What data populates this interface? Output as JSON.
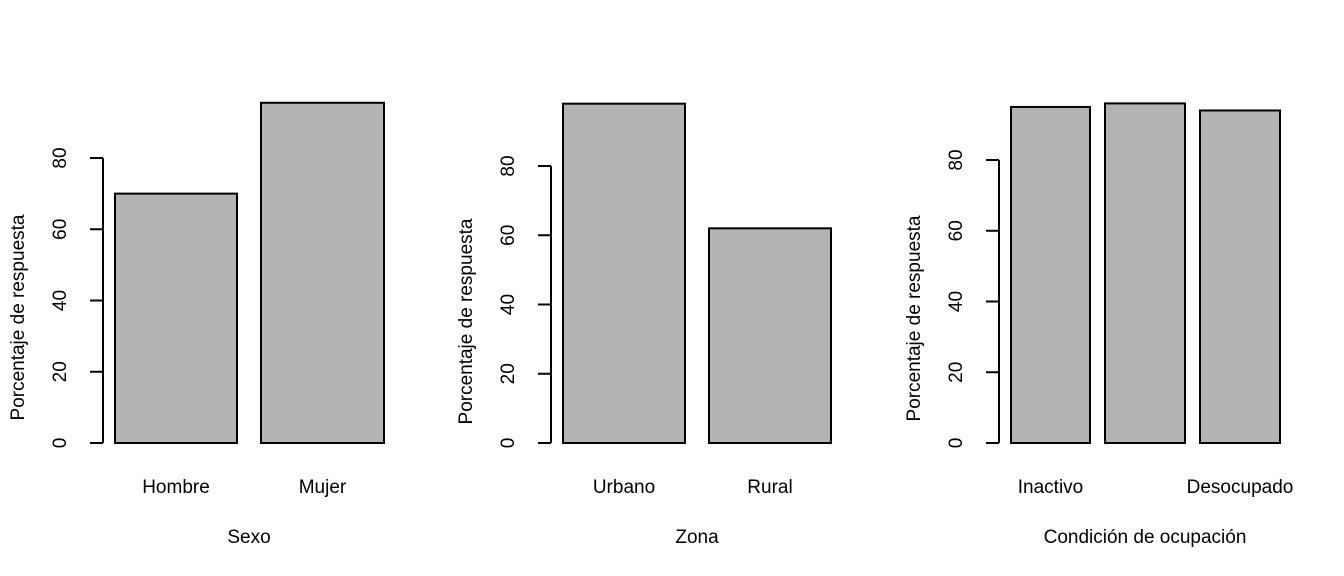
{
  "chart_data": [
    {
      "type": "bar",
      "categories": [
        "Hombre",
        "Mujer"
      ],
      "category_labels_shown": [
        "Hombre",
        "Mujer"
      ],
      "values": [
        70,
        95.5
      ],
      "xlabel": "Sexo",
      "ylabel": "Porcentaje de respuesta",
      "yticks": [
        0,
        20,
        40,
        60,
        80
      ],
      "ylim": [
        0,
        95.5
      ],
      "bar_color": "#b3b3b3",
      "grid": false
    },
    {
      "type": "bar",
      "categories": [
        "Urbano",
        "Rural"
      ],
      "category_labels_shown": [
        "Urbano",
        "Rural"
      ],
      "values": [
        98,
        62
      ],
      "xlabel": "Zona",
      "ylabel": "Porcentaje de respuesta",
      "yticks": [
        0,
        20,
        40,
        60,
        80
      ],
      "ylim": [
        0,
        98
      ],
      "bar_color": "#b3b3b3",
      "grid": false
    },
    {
      "type": "bar",
      "categories": [
        "Inactivo",
        "",
        "Desocupado"
      ],
      "category_labels_shown": [
        "Inactivo",
        "",
        "Desocupado"
      ],
      "values": [
        95,
        96,
        94
      ],
      "xlabel": "Condición de ocupación",
      "ylabel": "Porcentaje de respuesta",
      "yticks": [
        0,
        20,
        40,
        60,
        80
      ],
      "ylim": [
        0,
        96
      ],
      "bar_color": "#b3b3b3",
      "grid": false
    }
  ]
}
